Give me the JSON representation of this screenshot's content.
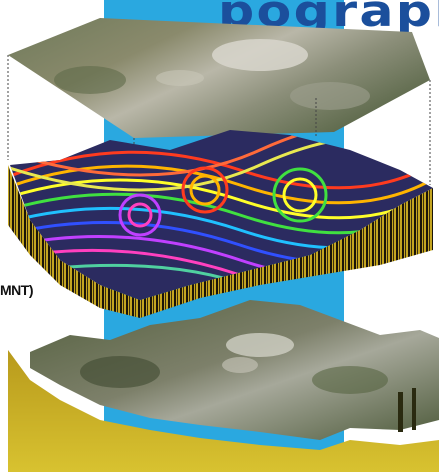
{
  "title_fragment": "pography",
  "layer_label": "MNT)",
  "layers": [
    {
      "name": "aerial-photo-layer"
    },
    {
      "name": "elevation-model-layer"
    },
    {
      "name": "textured-terrain-layer"
    }
  ],
  "colors": {
    "band": "#2aa8e0",
    "title": "#1b4f9c",
    "terrain_side": "#c9b21e",
    "contour_palette": [
      "#ff3b1f",
      "#ffb400",
      "#ffff2a",
      "#40e040",
      "#20c0ff",
      "#3050ff",
      "#c040ff",
      "#ff40c0"
    ]
  }
}
